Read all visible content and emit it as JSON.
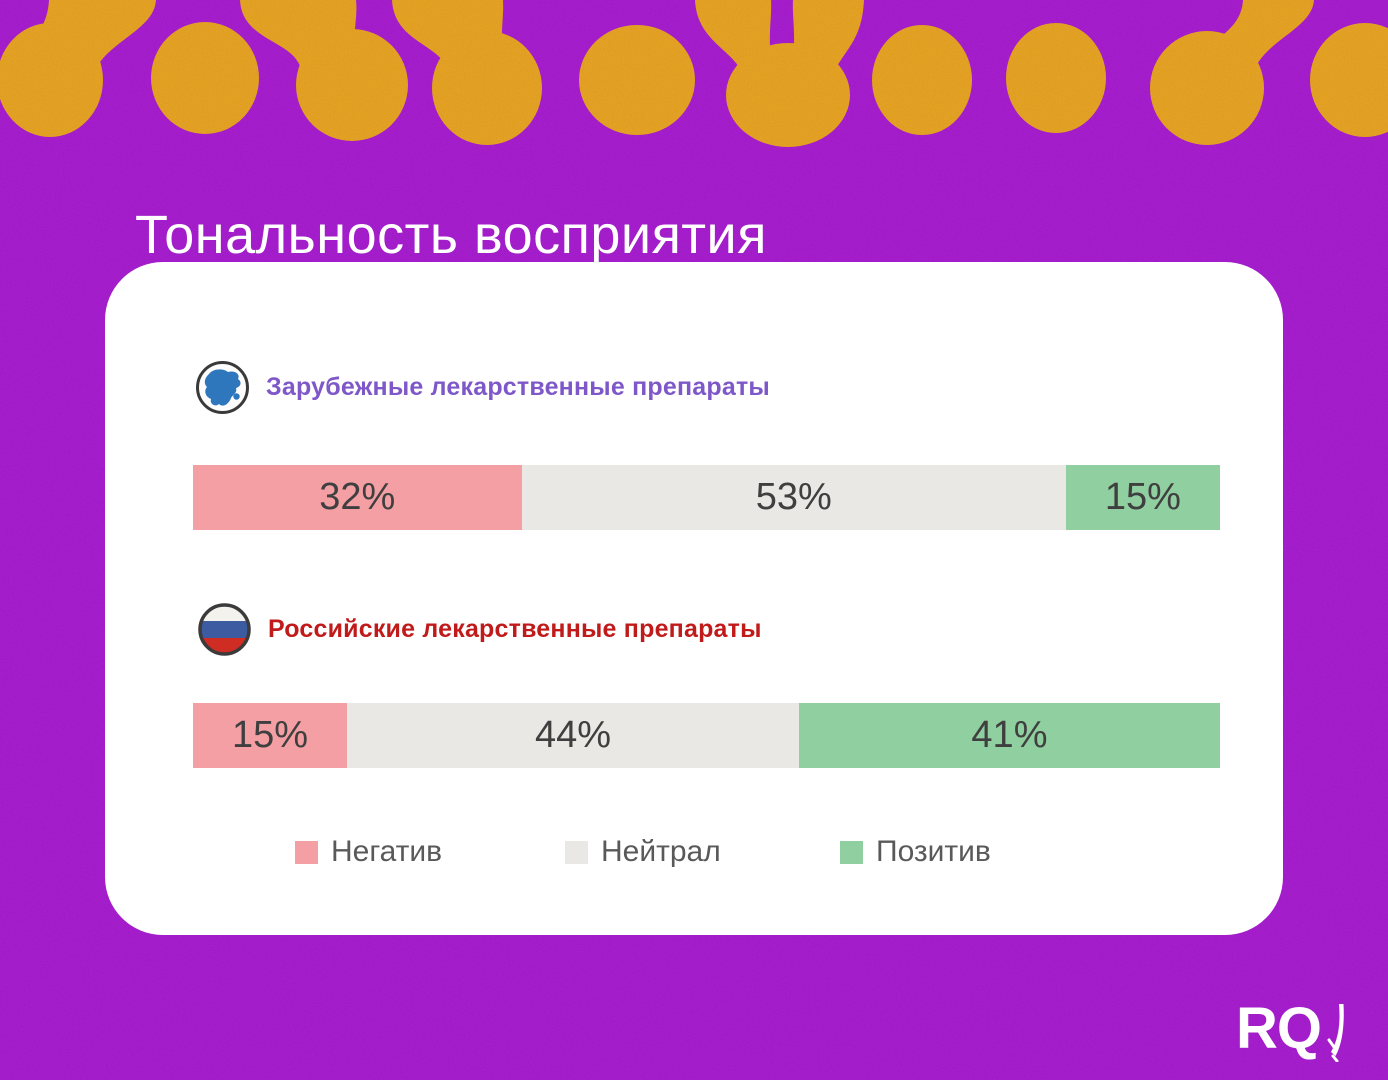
{
  "title": "Тональность восприятия",
  "logo": {
    "text": "RQ",
    "icon": "quill-icon"
  },
  "rows": [
    {
      "label": "Зарубежные лекарственные препараты",
      "icon": "globe-icon",
      "label_color": "#7e57c8"
    },
    {
      "label": "Российские лекарственные препараты",
      "icon": "russia-flag-icon",
      "label_color": "#c11a1a"
    }
  ],
  "chart_data": {
    "type": "bar",
    "variant": "stacked-horizontal",
    "title": "Тональность восприятия",
    "unit": "%",
    "categories": [
      "Зарубежные лекарственные препараты",
      "Российские лекарственные препараты"
    ],
    "series": [
      {
        "name": "Негатив",
        "color": "#f49fa4",
        "values": [
          32,
          15
        ]
      },
      {
        "name": "Нейтрал",
        "color": "#e9e8e5",
        "values": [
          53,
          44
        ]
      },
      {
        "name": "Позитив",
        "color": "#90cfa0",
        "values": [
          15,
          41
        ]
      }
    ],
    "xlim": [
      0,
      100
    ],
    "legend_position": "bottom",
    "value_labels": [
      "32%",
      "53%",
      "15%",
      "15%",
      "44%",
      "41%"
    ]
  },
  "colors": {
    "background_purple": "#aa14d6",
    "blob_orange": "#f0a71b",
    "card_white": "#ffffff",
    "title_text": "#ffffff",
    "value_text": "#3f3f3f",
    "legend_text": "#595959"
  }
}
